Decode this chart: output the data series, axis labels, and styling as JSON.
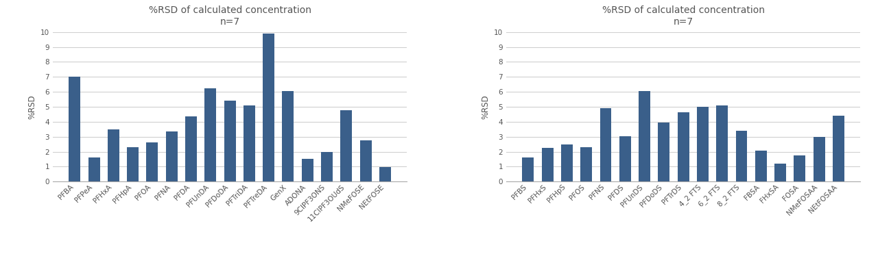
{
  "left_chart": {
    "title": "%RSD of calculated concentration\nn=7",
    "ylabel": "%RSD",
    "categories": [
      "PFBA",
      "PFPeA",
      "PFHxA",
      "PFHpA",
      "PFOA",
      "PFNA",
      "PFDA",
      "PFUnDA",
      "PFDoDA",
      "PFTriDA",
      "PFTreDA",
      "GenX",
      "ADONA",
      "9ClPF3ONS",
      "11ClPF3OUdS",
      "NMeFOSE",
      "NEtFOSE"
    ],
    "values": [
      7.0,
      1.6,
      3.5,
      2.3,
      2.6,
      3.35,
      4.35,
      6.25,
      5.4,
      5.1,
      9.9,
      6.05,
      1.5,
      2.0,
      4.75,
      2.75,
      0.95
    ],
    "ylim": [
      0,
      10
    ],
    "yticks": [
      0,
      1,
      2,
      3,
      4,
      5,
      6,
      7,
      8,
      9,
      10
    ],
    "bar_color": "#3A5F8A"
  },
  "right_chart": {
    "title": "%RSD of calculated concentration\nn=7",
    "ylabel": "%RSD",
    "categories": [
      "PFBS",
      "PFHxS",
      "PFHpS",
      "PFOS",
      "PFNS",
      "PFDS",
      "PFUnDS",
      "PFDoDS",
      "PFTrDS",
      "4_2 FTS",
      "6_2 FTS",
      "8_2 FTS",
      "FBSA",
      "FHxSA",
      "FOSA",
      "NMeFOSAA",
      "NEtFOSAA"
    ],
    "values": [
      1.6,
      2.25,
      2.5,
      2.3,
      4.9,
      3.05,
      6.05,
      3.95,
      4.65,
      5.0,
      5.1,
      3.4,
      2.05,
      1.2,
      1.75,
      3.0,
      4.4
    ],
    "ylim": [
      0,
      10
    ],
    "yticks": [
      0,
      1,
      2,
      3,
      4,
      5,
      6,
      7,
      8,
      9,
      10
    ],
    "bar_color": "#3A5F8A"
  },
  "figure_bg": "#ffffff",
  "axes_bg": "#ffffff",
  "grid_color": "#d0d0d0",
  "tick_fontsize": 7.5,
  "label_fontsize": 8.5,
  "title_fontsize": 10,
  "title_color": "#555555"
}
